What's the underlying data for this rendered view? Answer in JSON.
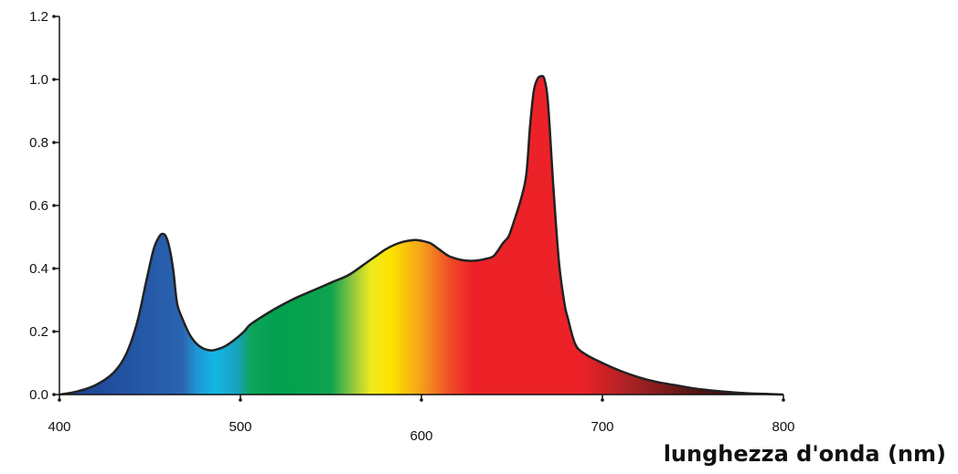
{
  "chart_data": {
    "type": "area",
    "title": "",
    "xlabel": "lunghezza d'onda (nm)",
    "ylabel": "",
    "xlim": [
      400,
      800
    ],
    "ylim": [
      0,
      1.2
    ],
    "x_ticks": [
      "400",
      "500",
      "600",
      "700",
      "800"
    ],
    "y_ticks": [
      "0.0",
      "0.2",
      "0.4",
      "0.6",
      "0.8",
      "1.0",
      "1.2"
    ],
    "grid": false,
    "legend": "none",
    "fill": "visible spectrum gradient",
    "outline_color": "#222222",
    "series": [
      {
        "x": [
          400,
          410,
          420,
          430,
          437,
          443,
          448,
          452,
          455,
          457,
          459,
          461,
          463,
          465,
          468,
          472,
          476,
          480,
          484,
          488,
          492,
          497,
          502,
          505,
          510,
          520,
          530,
          540,
          550,
          560,
          570,
          575,
          580,
          585,
          590,
          595,
          598,
          600,
          605,
          610,
          615,
          620,
          625,
          630,
          635,
          640,
          645,
          648,
          650,
          655,
          658,
          660,
          662,
          664,
          666,
          668,
          670,
          673,
          676,
          679,
          681,
          685,
          690,
          700,
          710,
          720,
          730,
          740,
          750,
          760,
          770,
          780,
          790,
          800
        ],
        "y": [
          0.0,
          0.01,
          0.03,
          0.07,
          0.13,
          0.23,
          0.36,
          0.46,
          0.5,
          0.51,
          0.5,
          0.46,
          0.39,
          0.29,
          0.24,
          0.19,
          0.16,
          0.145,
          0.14,
          0.145,
          0.155,
          0.175,
          0.2,
          0.22,
          0.24,
          0.275,
          0.305,
          0.33,
          0.355,
          0.38,
          0.42,
          0.44,
          0.46,
          0.475,
          0.485,
          0.49,
          0.49,
          0.488,
          0.48,
          0.46,
          0.44,
          0.43,
          0.425,
          0.425,
          0.43,
          0.44,
          0.48,
          0.5,
          0.53,
          0.62,
          0.7,
          0.85,
          0.96,
          1.0,
          1.01,
          1.0,
          0.92,
          0.65,
          0.42,
          0.29,
          0.24,
          0.16,
          0.13,
          0.1,
          0.075,
          0.055,
          0.04,
          0.03,
          0.02,
          0.013,
          0.008,
          0.004,
          0.002,
          0.0
        ]
      }
    ]
  }
}
